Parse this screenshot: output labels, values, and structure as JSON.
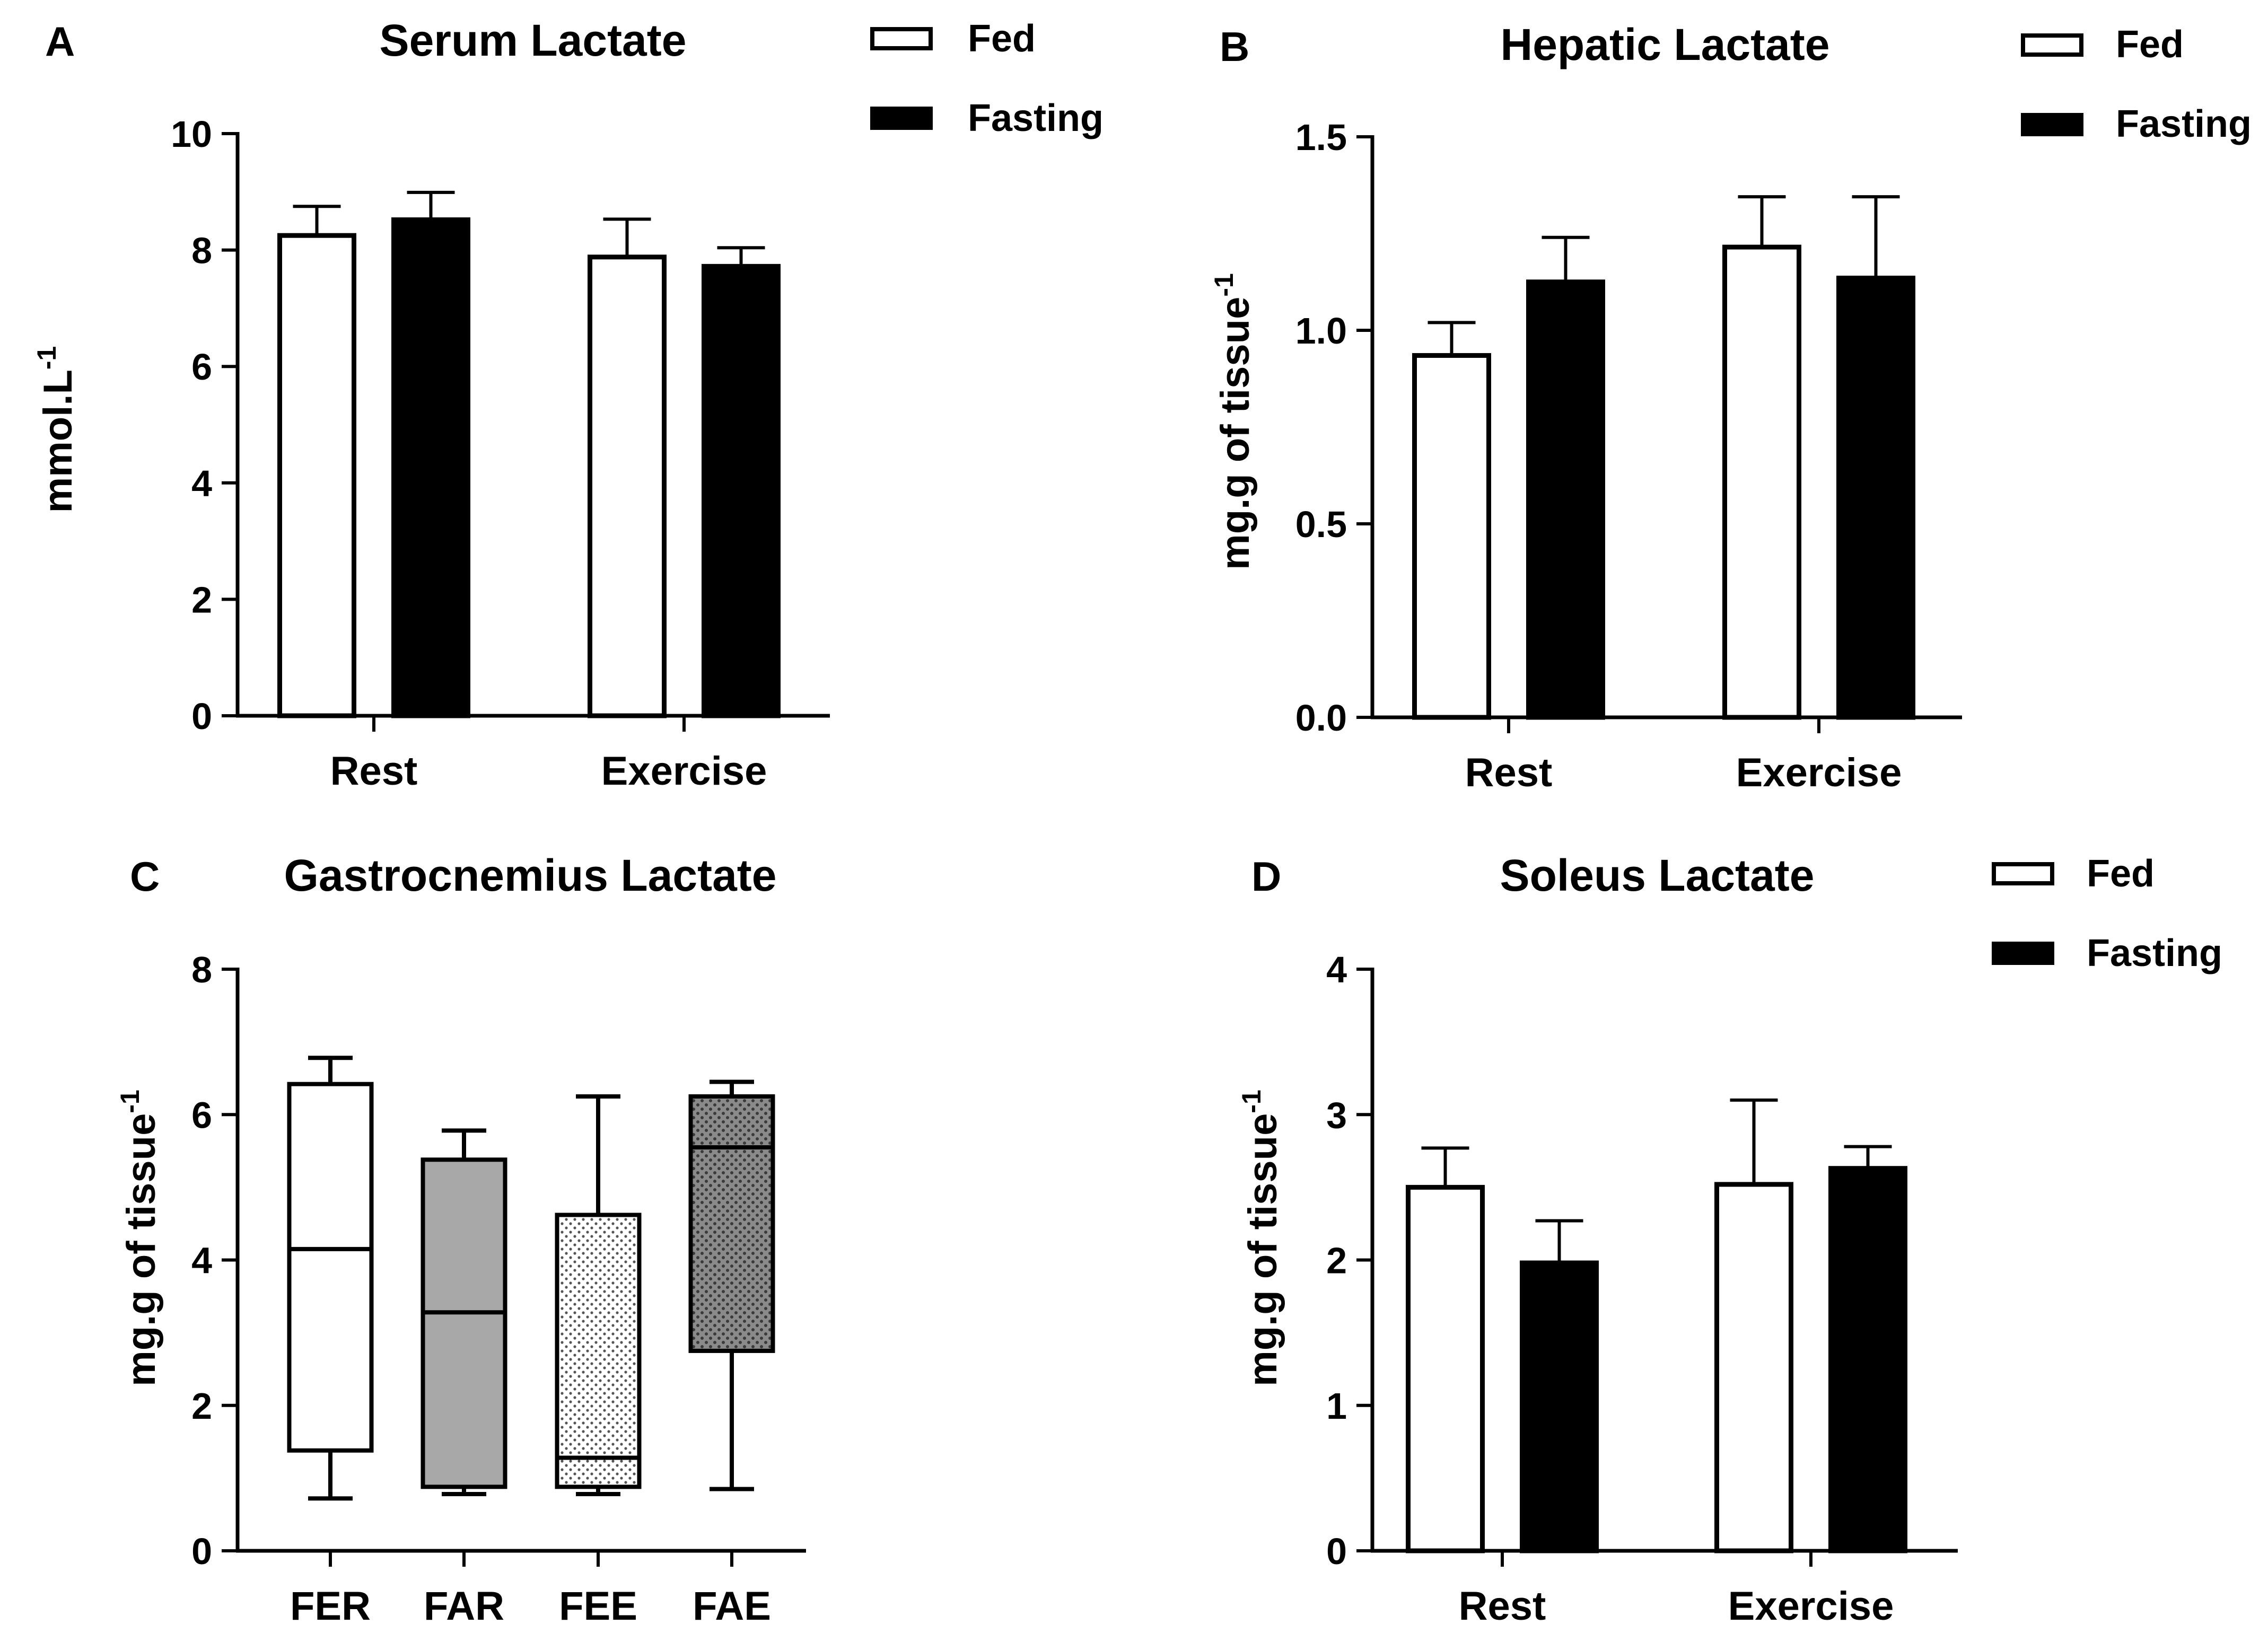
{
  "colors": {
    "fed": "#ffffff",
    "fasting": "#000000",
    "stroke": "#000000"
  },
  "chart_data": [
    {
      "id": "A",
      "type": "bar",
      "panel_label": "A",
      "title": "Serum Lactate",
      "xlabel": "",
      "ylabel": "mmol.L",
      "ylabel_sup": "-1",
      "ylim": [
        0,
        10
      ],
      "yticks": [
        0,
        2,
        4,
        6,
        8,
        10
      ],
      "ytick_labels": [
        "0",
        "2",
        "4",
        "6",
        "8",
        "10"
      ],
      "categories": [
        "Rest",
        "Exercise"
      ],
      "series": [
        {
          "name": "Fed",
          "values": [
            8.25,
            7.88
          ],
          "errors": [
            0.5,
            0.65
          ]
        },
        {
          "name": "Fasting",
          "values": [
            8.52,
            7.72
          ],
          "errors": [
            0.47,
            0.32
          ]
        }
      ],
      "legend": [
        "Fed",
        "Fasting"
      ]
    },
    {
      "id": "B",
      "type": "bar",
      "panel_label": "B",
      "title": "Hepatic Lactate",
      "xlabel": "",
      "ylabel": "mg.g of tissue",
      "ylabel_sup": "-1",
      "ylim": [
        0,
        1.5
      ],
      "yticks": [
        0,
        0.5,
        1.0,
        1.5
      ],
      "ytick_labels": [
        "0.0",
        "0.5",
        "1.0",
        "1.5"
      ],
      "categories": [
        "Rest",
        "Exercise"
      ],
      "series": [
        {
          "name": "Fed",
          "values": [
            0.935,
            1.215
          ],
          "errors": [
            0.085,
            0.13
          ]
        },
        {
          "name": "Fasting",
          "values": [
            1.125,
            1.135
          ],
          "errors": [
            0.115,
            0.21
          ]
        }
      ],
      "legend": [
        "Fed",
        "Fasting"
      ]
    },
    {
      "id": "C",
      "type": "box",
      "panel_label": "C",
      "title": "Gastrocnemius Lactate",
      "xlabel": "",
      "ylabel": "mg.g of tissue",
      "ylabel_sup": "-1",
      "ylim": [
        0,
        8
      ],
      "yticks": [
        0,
        2,
        4,
        6,
        8
      ],
      "ytick_labels": [
        "0",
        "2",
        "4",
        "6",
        "8"
      ],
      "categories": [
        "FER",
        "FAR",
        "FEE",
        "FAE"
      ],
      "boxes": [
        {
          "name": "FER",
          "min": 0.72,
          "q1": 1.38,
          "median": 4.15,
          "q3": 6.42,
          "max": 6.78,
          "fill": "white"
        },
        {
          "name": "FAR",
          "min": 0.78,
          "q1": 0.88,
          "median": 3.28,
          "q3": 5.38,
          "max": 5.78,
          "fill": "gray"
        },
        {
          "name": "FEE",
          "min": 0.78,
          "q1": 0.88,
          "median": 1.28,
          "q3": 4.62,
          "max": 6.25,
          "fill": "dotted"
        },
        {
          "name": "FAE",
          "min": 0.85,
          "q1": 2.75,
          "median": 5.55,
          "q3": 6.25,
          "max": 6.45,
          "fill": "dark-dotted"
        }
      ]
    },
    {
      "id": "D",
      "type": "bar",
      "panel_label": "D",
      "title": "Soleus Lactate",
      "xlabel": "",
      "ylabel": "mg.g of tissue",
      "ylabel_sup": "-1",
      "ylim": [
        0,
        4
      ],
      "yticks": [
        0,
        1,
        2,
        3,
        4
      ],
      "ytick_labels": [
        "0",
        "1",
        "2",
        "3",
        "4"
      ],
      "categories": [
        "Rest",
        "Exercise"
      ],
      "series": [
        {
          "name": "Fed",
          "values": [
            2.5,
            2.52
          ],
          "errors": [
            0.27,
            0.58
          ]
        },
        {
          "name": "Fasting",
          "values": [
            1.98,
            2.63
          ],
          "errors": [
            0.29,
            0.15
          ]
        }
      ],
      "legend": [
        "Fed",
        "Fasting"
      ]
    }
  ]
}
